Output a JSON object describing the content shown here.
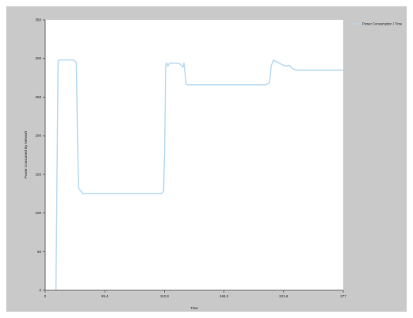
{
  "colors": {
    "frame_background": "#c9c9c9",
    "plot_background": "#ffffff",
    "series_line": "#b8daf2",
    "axis": "#444444",
    "text": "#222222"
  },
  "chart_data": {
    "type": "line",
    "title": "",
    "xlabel": "Time",
    "ylabel": "Power Consumed By Network",
    "xlim": [
      0,
      277
    ],
    "ylim": [
      0,
      350
    ],
    "x_ticks": [
      0,
      55.4,
      110.8,
      166.2,
      221.6,
      277
    ],
    "x_tick_labels": [
      "0",
      "55.4",
      "110.8",
      "166.2",
      "221.6",
      "277"
    ],
    "y_ticks": [
      0,
      50,
      100,
      150,
      200,
      250,
      300,
      350
    ],
    "y_tick_labels": [
      "0",
      "50",
      "100",
      "150",
      "200",
      "250",
      "300",
      "350"
    ],
    "grid": false,
    "legend_position": "top-right",
    "series": [
      {
        "name": "Power Consumption / Time",
        "color": "#b8daf2",
        "x": [
          10,
          11,
          12,
          14,
          20,
          26,
          28,
          29,
          30,
          31,
          35,
          40,
          50,
          60,
          70,
          80,
          90,
          100,
          108,
          110,
          111,
          112,
          113,
          114,
          115,
          117,
          120,
          125,
          128,
          129,
          130,
          131,
          132,
          133,
          135,
          140,
          150,
          160,
          170,
          180,
          190,
          200,
          205,
          208,
          209,
          210,
          212,
          214,
          215,
          220,
          224,
          227,
          229,
          231,
          234,
          240,
          250,
          260,
          270,
          277
        ],
        "y": [
          0,
          150,
          297,
          298,
          298,
          298,
          296,
          295,
          200,
          132,
          125,
          125,
          125,
          125,
          125,
          125,
          125,
          125,
          125,
          128,
          180,
          292,
          294,
          290,
          293,
          294,
          294,
          293,
          289,
          294,
          280,
          267,
          266,
          266,
          266,
          266,
          266,
          266,
          266,
          266,
          266,
          266,
          266,
          268,
          275,
          290,
          298,
          296,
          296,
          292,
          290,
          291,
          288,
          286,
          285,
          285,
          285,
          285,
          285,
          285
        ]
      }
    ]
  }
}
